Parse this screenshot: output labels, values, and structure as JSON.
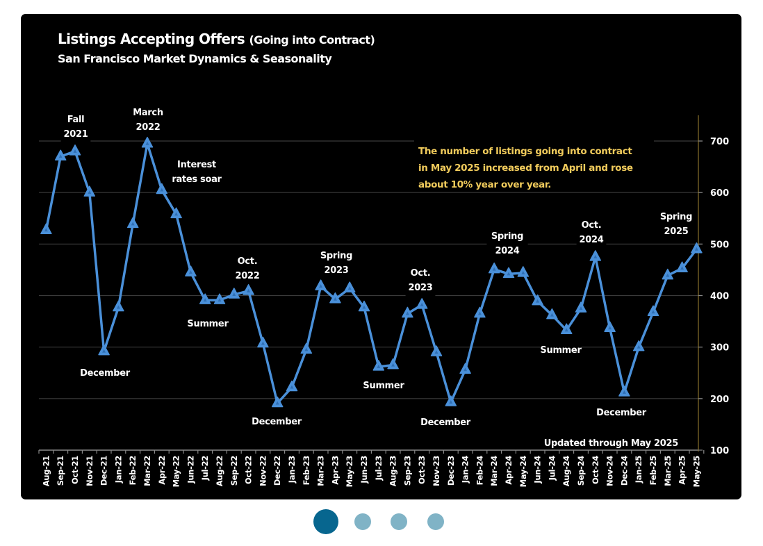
{
  "chart_data": {
    "type": "line",
    "title": "Listings Accepting Offers",
    "title_suffix": "(Going into Contract)",
    "subtitle": "San Francisco Market Dynamics & Seasonality",
    "xlabel": "",
    "ylabel": "",
    "ylim": [
      100,
      700
    ],
    "y_ticks": [
      100,
      200,
      300,
      400,
      500,
      600,
      700
    ],
    "y_axis_side": "right",
    "grid": true,
    "categories": [
      "Aug-21",
      "Sep-21",
      "Oct-21",
      "Nov-21",
      "Dec-21",
      "Jan-22",
      "Feb-22",
      "Mar-22",
      "Apr-22",
      "May-22",
      "Jun-22",
      "Jul-22",
      "Aug-22",
      "Sep-22",
      "Oct-22",
      "Nov-22",
      "Dec-22",
      "Jan-23",
      "Feb-23",
      "Mar-23",
      "Apr-23",
      "May-23",
      "Jun-23",
      "Jul-23",
      "Aug-23",
      "Sep-23",
      "Oct-23",
      "Nov-23",
      "Dec-23",
      "Jan-24",
      "Feb-24",
      "Mar-24",
      "Apr-24",
      "May-24",
      "Jun-24",
      "Jul-24",
      "Aug-24",
      "Sep-24",
      "Oct-24",
      "Nov-24",
      "Dec-24",
      "Jan-25",
      "Feb-25",
      "Mar-25",
      "Apr-25",
      "May-25"
    ],
    "series": [
      {
        "name": "Listings Accepting Offers",
        "color": "#4a90d9",
        "marker": "triangle",
        "values": [
          527,
          670,
          680,
          600,
          292,
          377,
          539,
          695,
          605,
          558,
          445,
          391,
          391,
          402,
          409,
          307,
          191,
          222,
          295,
          418,
          393,
          414,
          377,
          262,
          265,
          365,
          382,
          290,
          193,
          256,
          365,
          451,
          442,
          444,
          389,
          362,
          333,
          375,
          475,
          337,
          212,
          300,
          368,
          439,
          453,
          490
        ]
      }
    ],
    "annotations": [
      {
        "lines": [
          "Fall",
          "2021"
        ],
        "near": "Oct-21",
        "position": "above"
      },
      {
        "lines": [
          "March",
          "2022"
        ],
        "near": "Mar-22",
        "position": "above"
      },
      {
        "lines": [
          "Interest",
          "rates soar"
        ],
        "near": "May-22",
        "position": "above-right"
      },
      {
        "lines": [
          "December"
        ],
        "near": "Dec-21",
        "position": "below"
      },
      {
        "lines": [
          "Summer"
        ],
        "near": "Jul-22",
        "position": "below"
      },
      {
        "lines": [
          "Oct.",
          "2022"
        ],
        "near": "Oct-22",
        "position": "above"
      },
      {
        "lines": [
          "December"
        ],
        "near": "Dec-22",
        "position": "below"
      },
      {
        "lines": [
          "Spring",
          "2023"
        ],
        "near": "Apr-23",
        "position": "above"
      },
      {
        "lines": [
          "Summer"
        ],
        "near": "Jul-23",
        "position": "below"
      },
      {
        "lines": [
          "Oct.",
          "2023"
        ],
        "near": "Oct-23",
        "position": "above"
      },
      {
        "lines": [
          "December"
        ],
        "near": "Dec-23",
        "position": "below"
      },
      {
        "lines": [
          "Spring",
          "2024"
        ],
        "near": "Apr-24",
        "position": "above"
      },
      {
        "lines": [
          "Summer"
        ],
        "near": "Aug-24",
        "position": "below"
      },
      {
        "lines": [
          "Oct.",
          "2024"
        ],
        "near": "Oct-24",
        "position": "above"
      },
      {
        "lines": [
          "December"
        ],
        "near": "Dec-24",
        "position": "below"
      },
      {
        "lines": [
          "Spring",
          "2025"
        ],
        "near": "May-25",
        "position": "above"
      }
    ],
    "note": {
      "lines": [
        "The number of listings going into contract",
        "in May 2025 increased from April and rose",
        "about 10% year over year."
      ],
      "color": "#f2cc5c"
    },
    "footnote": "Updated through May 2025"
  },
  "pagination": {
    "total": 4,
    "active_index": 0,
    "active_color": "#07668f",
    "inactive_color": "#80b3c6"
  }
}
